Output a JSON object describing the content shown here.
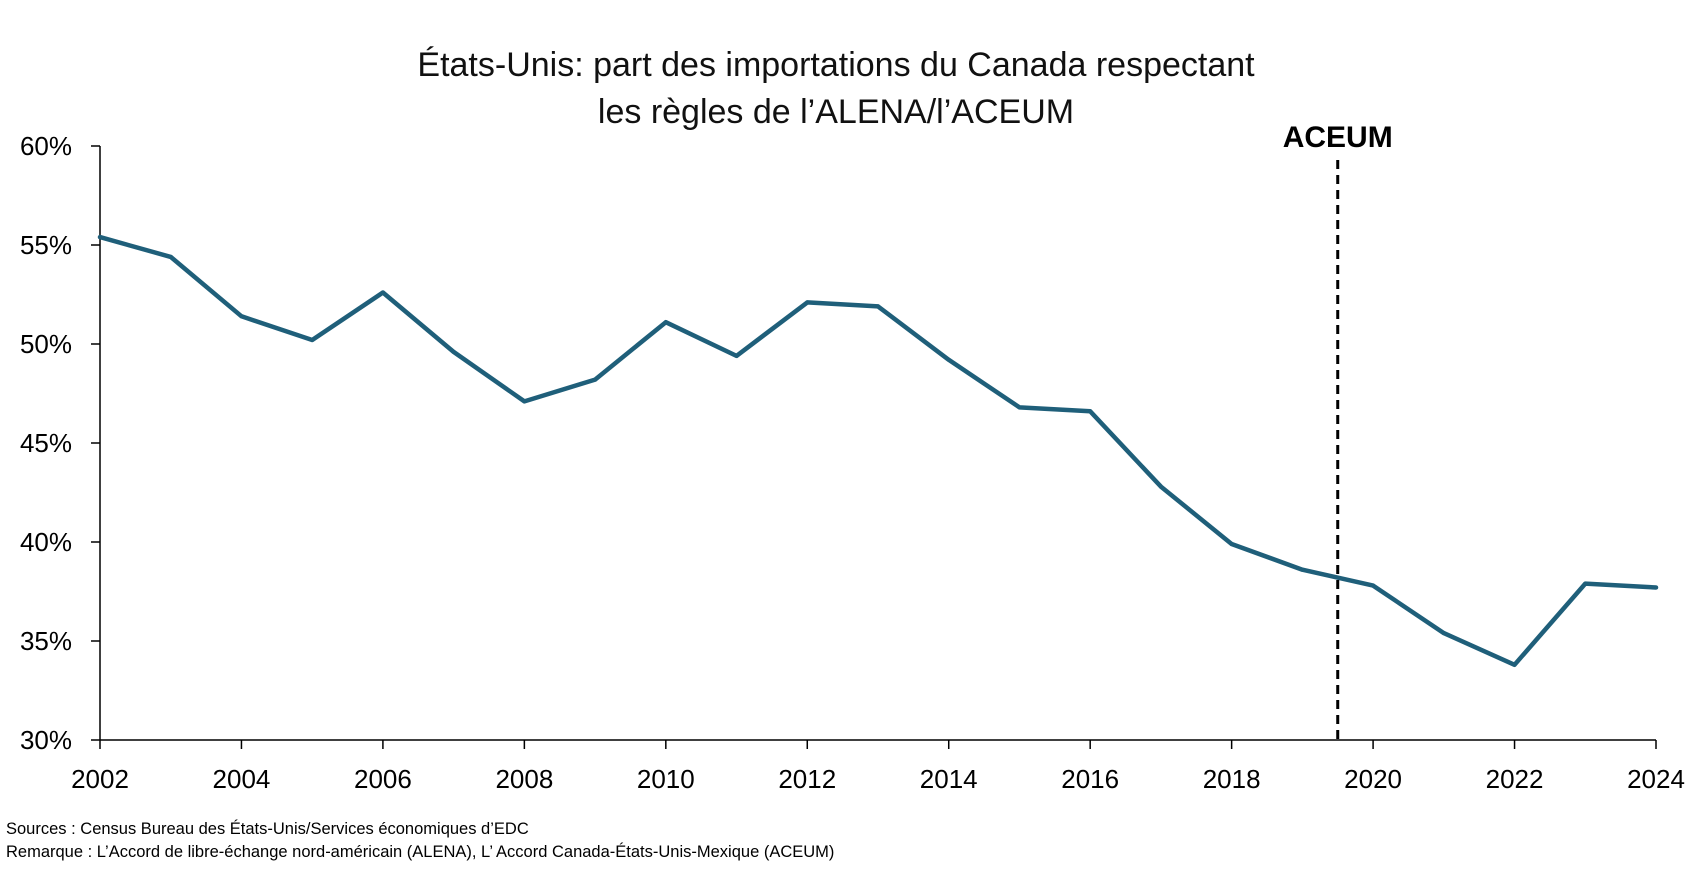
{
  "chart_data": {
    "type": "line",
    "title_line1": "États-Unis: part des importations du Canada respectant",
    "title_line2": "les règles de l’ALENA/l’ACEUM",
    "xlabel": "",
    "ylabel": "",
    "x_ticks": [
      "2002",
      "2004",
      "2006",
      "2008",
      "2010",
      "2012",
      "2014",
      "2016",
      "2018",
      "2020",
      "2022",
      "2024"
    ],
    "y_ticks": [
      "30%",
      "35%",
      "40%",
      "45%",
      "50%",
      "55%",
      "60%"
    ],
    "xlim": [
      2002,
      2024
    ],
    "ylim": [
      30,
      60
    ],
    "grid": false,
    "series": [
      {
        "color": "#1f5f7a",
        "x": [
          2002,
          2003,
          2004,
          2005,
          2006,
          2007,
          2008,
          2009,
          2010,
          2011,
          2012,
          2013,
          2014,
          2015,
          2016,
          2017,
          2018,
          2019,
          2020,
          2021,
          2022,
          2023,
          2024
        ],
        "values": [
          55.4,
          54.4,
          51.4,
          50.2,
          52.6,
          49.6,
          47.1,
          48.2,
          51.1,
          49.4,
          52.1,
          51.9,
          49.2,
          46.8,
          46.6,
          42.8,
          39.9,
          38.6,
          37.8,
          35.4,
          33.8,
          37.9,
          37.7
        ]
      }
    ],
    "annotations": [
      {
        "label": "ACEUM",
        "x": 2019.5,
        "style": "dashed-vertical-line",
        "color": "#000000"
      }
    ]
  },
  "footer": {
    "sources": "Sources : Census Bureau des États-Unis/Services économiques d’EDC",
    "note": "Remarque : L’Accord de libre-échange nord-américain (ALENA), L’ Accord Canada-États-Unis-Mexique (ACEUM)"
  }
}
